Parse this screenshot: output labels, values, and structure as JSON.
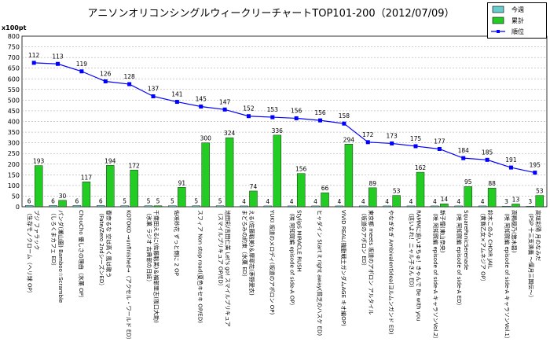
{
  "chart_data": {
    "type": "bar",
    "title": "アニソンオリコンシングルウィークリーチャートTOP101-200（2012/07/09）",
    "yunit": "x100pt",
    "ylim": [
      0,
      800
    ],
    "yticks": [
      0,
      50,
      100,
      150,
      200,
      250,
      300,
      350,
      400,
      450,
      500,
      550,
      600,
      650,
      700,
      750,
      800
    ],
    "grid": true,
    "legend_position": "top-right",
    "categories": [
      [
        "ブジ ファラック",
        "（生存モノクローム（ヘリ球 OP）"
      ],
      [
        "パンダ(瀬山園) Bamboo☆Scramble",
        "（しろくまカフェ ED）"
      ],
      [
        "ChouCho 優しさの理由（氷菓 OP）"
      ],
      [
        "春奈るな 空は高く風は歌う",
        "（Fate/Zero 2ndシーズンED）"
      ],
      [
        "KOTOKO →unfinished→（アクセル・ワールド ED）"
      ],
      [
        "千葉田えるに(佐藤聡美)＆福部里志(阪口大助)",
        "（氷菓 ラジオ 古典部の日誌）"
      ],
      [
        "佐咲紗花 ずっと側に 2 OP"
      ],
      [
        "スフィア Non stop road(夏色キセキ OP/ED)"
      ],
      [
        "池田彩/吉田仁美 Let's go! スマイルプリキュア",
        "（スマイルプリキュア OP/ED）"
      ],
      [
        "える(佐藤聡美)＆摩耶花(茅野愛衣)",
        "まどろみの約束（氷菓 ED）"
      ],
      [
        "YUKI 坂道のメロディ(坂道のアポロン OP)"
      ],
      [
        "StylipS MIRACLE RUSH",
        "（咲 阿知賀編 episode of side-A OP）"
      ],
      [
        "ヒャダイン Start it right away(貧乏のハスケ ED)"
      ],
      [
        "ViViD REAL(機動戦士ガンダムAGE キオ編OP)"
      ],
      [
        "東京都 meets 坂道のアポロン アルタイル",
        "（坂道のアポロン ED）"
      ],
      [
        "やなぎなぎ Ambivalentidea(ヨルムンガンド ED)"
      ],
      [
        "RAMMに追いまちゅ！きゃんで Be with you",
        "（這いよれ！ニャル子さん ED）"
      ],
      [
        "新子憧(東山奈央)",
        "（咲 阿知賀編 episode of side-A キャラソンVol.2）"
      ],
      [
        "SquarePanicSerenade",
        "（咲 阿知賀編 episode of side-A ED）"
      ],
      [
        "鈴木このみ CHOIR JAIL",
        "（黄昏乙女×アムネジア OP）"
      ],
      [
        "高鴨穏乃(悠木碧)",
        "（咲 阿知賀編 episode of side-A キャラソンVol.1）"
      ],
      [
        "高垣彩陽 月のなみだ",
        "（PSP 十三支演義 ～偃月三国伝～）"
      ]
    ],
    "series": [
      {
        "name": "今週",
        "type": "bar",
        "color": "#66cccc",
        "values": [
          6,
          6,
          6,
          6,
          5,
          5,
          5,
          5,
          5,
          4,
          4,
          4,
          4,
          4,
          4,
          4,
          4,
          4,
          4,
          4,
          3,
          3
        ]
      },
      {
        "name": "累計",
        "type": "bar",
        "color": "#22cc22",
        "values": [
          193,
          30,
          117,
          194,
          172,
          5,
          91,
          300,
          324,
          74,
          336,
          156,
          66,
          294,
          89,
          53,
          162,
          14,
          95,
          88,
          13,
          53
        ]
      },
      {
        "name": "順位",
        "type": "line",
        "color": "#0000ff",
        "values": [
          112,
          113,
          119,
          126,
          128,
          137,
          141,
          145,
          147,
          152,
          153,
          156,
          156,
          158,
          172,
          173,
          175,
          177,
          184,
          185,
          191,
          195
        ],
        "plot_values": [
          675,
          670,
          635,
          588,
          575,
          518,
          492,
          470,
          456,
          425,
          420,
          415,
          405,
          390,
          303,
          297,
          284,
          271,
          228,
          220,
          184,
          160
        ]
      }
    ]
  }
}
